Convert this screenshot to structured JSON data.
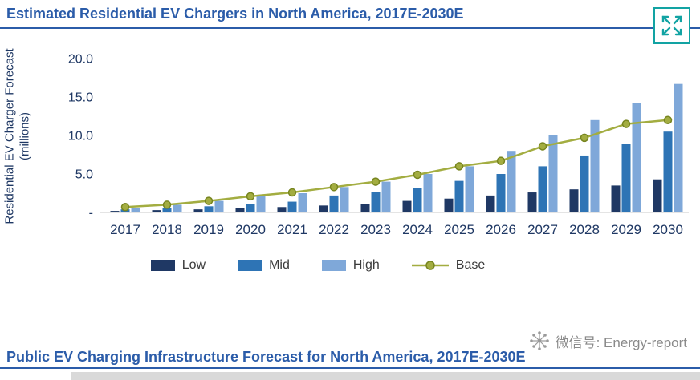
{
  "header": {
    "title": "Estimated Residential EV Chargers in North America, 2017E-2030E"
  },
  "chart_data": {
    "type": "bar",
    "title": "Estimated Residential EV Chargers in North America, 2017E-2030E",
    "ylabel": "Residential EV Charger Forecast (millions)",
    "xlabel": "",
    "categories": [
      "2017",
      "2018",
      "2019",
      "2020",
      "2021",
      "2022",
      "2023",
      "2024",
      "2025",
      "2026",
      "2027",
      "2028",
      "2029",
      "2030"
    ],
    "series": [
      {
        "name": "Low",
        "type": "bar",
        "color": "#1f3864",
        "values": [
          0.2,
          0.3,
          0.4,
          0.6,
          0.7,
          0.9,
          1.1,
          1.5,
          1.8,
          2.2,
          2.6,
          3.0,
          3.5,
          4.3
        ]
      },
      {
        "name": "Mid",
        "type": "bar",
        "color": "#2e74b5",
        "values": [
          0.4,
          0.6,
          0.8,
          1.1,
          1.4,
          2.2,
          2.7,
          3.2,
          4.1,
          5.0,
          6.0,
          7.4,
          8.9,
          10.5
        ]
      },
      {
        "name": "High",
        "type": "bar",
        "color": "#7fa8d9",
        "values": [
          0.6,
          1.0,
          1.5,
          2.1,
          2.5,
          3.3,
          4.0,
          5.0,
          6.0,
          8.0,
          10.0,
          12.0,
          14.2,
          16.7
        ]
      },
      {
        "name": "Base",
        "type": "line",
        "color": "#a3ad41",
        "marker_stroke": "#77851f",
        "values": [
          0.7,
          1.0,
          1.5,
          2.1,
          2.6,
          3.3,
          4.0,
          4.9,
          6.0,
          6.7,
          8.6,
          9.7,
          11.5,
          12.0
        ]
      }
    ],
    "ylim": [
      0,
      20
    ],
    "yticks": [
      {
        "value": 0,
        "label": "-"
      },
      {
        "value": 5,
        "label": "5.0"
      },
      {
        "value": 10,
        "label": "10.0"
      },
      {
        "value": 15,
        "label": "15.0"
      },
      {
        "value": 20,
        "label": "20.0"
      }
    ],
    "grid": false,
    "legend_position": "bottom"
  },
  "footer": {
    "title": "Public EV Charging Infrastructure Forecast for North America, 2017E-2030E",
    "watermark": "微信号: Energy-report"
  },
  "colors": {
    "accent_blue": "#2b5ca9",
    "axis_text": "#1f3864",
    "teal": "#12a3a3",
    "watermark_gray": "#8a8a8a",
    "baseline_gray": "#c9c9c9"
  }
}
